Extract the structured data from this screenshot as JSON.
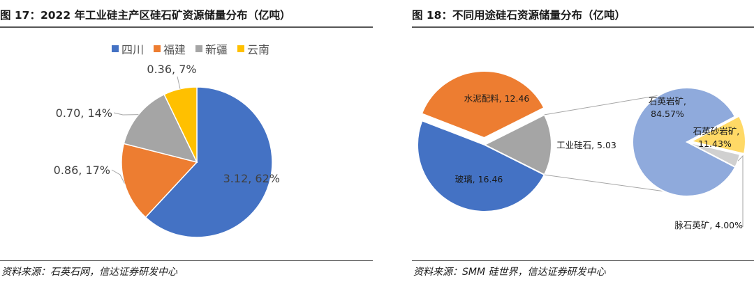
{
  "left": {
    "title": "图 17：2022 年工业硅主产区硅石矿资源储量分布（亿吨）",
    "source": "资料来源：石英石网，信达证券研发中心",
    "chart_data": {
      "type": "pie",
      "title": "",
      "slices": [
        {
          "name": "四川",
          "value": 3.12,
          "pct": 62,
          "label": "3.12, 62%",
          "color": "#4472C4"
        },
        {
          "name": "福建",
          "value": 0.86,
          "pct": 17,
          "label": "0.86, 17%",
          "color": "#ED7D31"
        },
        {
          "name": "新疆",
          "value": 0.7,
          "pct": 14,
          "label": "0.70, 14%",
          "color": "#A5A5A5"
        },
        {
          "name": "云南",
          "value": 0.36,
          "pct": 7,
          "label": "0.36, 7%",
          "color": "#FFC000"
        }
      ],
      "legend_position": "top"
    }
  },
  "right": {
    "title": "图 18：不同用途硅石资源储量分布（亿吨）",
    "source": "资料来源：SMM 硅世界，信达证券研发中心",
    "chart_data": {
      "type": "pie",
      "title": "",
      "main": [
        {
          "name": "水泥配料",
          "value": 12.46,
          "label": "水泥配料, 12.46",
          "color": "#ED7D31"
        },
        {
          "name": "玻璃",
          "value": 16.46,
          "label": "玻璃, 16.46",
          "color": "#4472C4"
        },
        {
          "name": "工业硅石",
          "value": 5.03,
          "label": "工业硅石, 5.03",
          "color": "#A5A5A5"
        }
      ],
      "breakdown_of": "工业硅石",
      "secondary": [
        {
          "name": "石英岩矿",
          "pct": 84.57,
          "label_name": "石英岩矿,",
          "label_value": "84.57%",
          "color": "#8FAADC"
        },
        {
          "name": "石英砂岩矿",
          "pct": 11.43,
          "label_name": "石英砂岩矿,",
          "label_value": "11.43%",
          "color": "#FFD966"
        },
        {
          "name": "脉石英矿",
          "pct": 4.0,
          "label": "脉石英矿, 4.00%",
          "color": "#D0D0D0"
        }
      ]
    }
  }
}
